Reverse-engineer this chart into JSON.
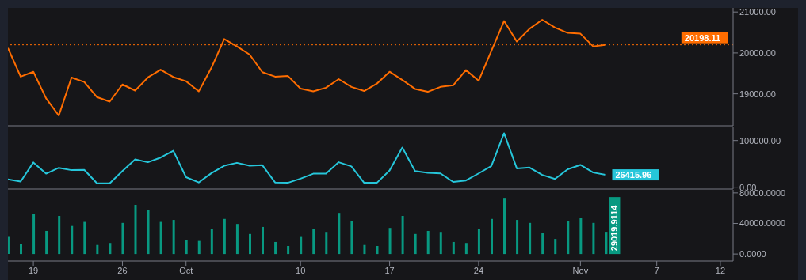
{
  "chart_data": [
    {
      "type": "line",
      "tick_labels": "y",
      "x": [
        "--09-17",
        "--09-18",
        "--09-19",
        "--09-20",
        "--09-21",
        "--09-22",
        "--09-23",
        "--09-24",
        "--09-25",
        "--09-26",
        "--09-27",
        "--09-28",
        "--09-29",
        "--09-30",
        "--10-01",
        "--10-02",
        "--10-03",
        "--10-04",
        "--10-05",
        "--10-06",
        "--10-07",
        "--10-08",
        "--10-09",
        "--10-10",
        "--10-11",
        "--10-12",
        "--10-13",
        "--10-14",
        "--10-15",
        "--10-16",
        "--10-17",
        "--10-18",
        "--10-19",
        "--10-20",
        "--10-21",
        "--10-22",
        "--10-23",
        "--10-24",
        "--10-25",
        "--10-26",
        "--10-27",
        "--10-28",
        "--10-29",
        "--10-30",
        "--10-31",
        "--11-01",
        "--11-02",
        "--11-03"
      ],
      "xlim": [
        "--09-17",
        "--11-13"
      ],
      "ylim": [
        18220,
        21100
      ],
      "yticks": [
        {
          "value": 19000,
          "label": "19000.00"
        },
        {
          "value": 20000,
          "label": "20000.00"
        },
        {
          "value": 21000,
          "label": "21000.00"
        }
      ],
      "series": [
        {
          "color": "#ff6d00",
          "values": [
            20120,
            19420,
            19540,
            18890,
            18470,
            19400,
            19290,
            18920,
            18810,
            19230,
            19080,
            19400,
            19590,
            19410,
            19310,
            19060,
            19640,
            20340,
            20160,
            19960,
            19530,
            19420,
            19440,
            19130,
            19060,
            19150,
            19360,
            19170,
            19070,
            19250,
            19540,
            19340,
            19120,
            19050,
            19170,
            19210,
            19580,
            19320,
            20050,
            20780,
            20280,
            20590,
            20810,
            20620,
            20490,
            20470,
            20160,
            20198.11
          ]
        }
      ],
      "ref_lines": [
        {
          "axis": "y",
          "value": 20198.11,
          "label": "20198.11",
          "color": "#ff6d00",
          "line_style": "dotted"
        }
      ]
    },
    {
      "type": "line",
      "tick_labels": "y",
      "x": [
        "--09-17",
        "--09-18",
        "--09-19",
        "--09-20",
        "--09-21",
        "--09-22",
        "--09-23",
        "--09-24",
        "--09-25",
        "--09-26",
        "--09-27",
        "--09-28",
        "--09-29",
        "--09-30",
        "--10-01",
        "--10-02",
        "--10-03",
        "--10-04",
        "--10-05",
        "--10-06",
        "--10-07",
        "--10-08",
        "--10-09",
        "--10-10",
        "--10-11",
        "--10-12",
        "--10-13",
        "--10-14",
        "--10-15",
        "--10-16",
        "--10-17",
        "--10-18",
        "--10-19",
        "--10-20",
        "--10-21",
        "--10-22",
        "--10-23",
        "--10-24",
        "--10-25",
        "--10-26",
        "--10-27",
        "--10-28",
        "--10-29",
        "--10-30",
        "--10-31",
        "--11-01",
        "--11-02",
        "--11-03"
      ],
      "xlim": [
        "--09-17",
        "--11-13"
      ],
      "ylim": [
        -4000,
        130000
      ],
      "yticks": [
        {
          "value": 0,
          "label": "0.00"
        },
        {
          "value": 100000,
          "label": "100000.00"
        }
      ],
      "series": [
        {
          "color": "#26c6da",
          "values": [
            17000,
            12000,
            53000,
            28900,
            41500,
            36500,
            37100,
            8200,
            8200,
            34600,
            59700,
            53500,
            63500,
            78000,
            21400,
            10100,
            30200,
            45900,
            52200,
            45900,
            47200,
            10100,
            9400,
            18200,
            28900,
            28900,
            53500,
            44600,
            9400,
            9400,
            35800,
            84900,
            34600,
            30800,
            29500,
            11300,
            14400,
            29500,
            45300,
            115700,
            40300,
            42100,
            26400,
            17600,
            38400,
            47800,
            31400,
            26415.96
          ],
          "value_labels": [
            null,
            null,
            null,
            null,
            null,
            null,
            null,
            null,
            null,
            null,
            null,
            null,
            null,
            null,
            null,
            null,
            null,
            null,
            null,
            null,
            null,
            null,
            null,
            null,
            null,
            null,
            null,
            null,
            null,
            null,
            null,
            null,
            null,
            null,
            null,
            null,
            null,
            null,
            null,
            null,
            null,
            null,
            null,
            null,
            null,
            null,
            null,
            "26415.96"
          ]
        }
      ]
    },
    {
      "type": "bar",
      "x": [
        "--09-17",
        "--09-18",
        "--09-19",
        "--09-20",
        "--09-21",
        "--09-22",
        "--09-23",
        "--09-24",
        "--09-25",
        "--09-26",
        "--09-27",
        "--09-28",
        "--09-29",
        "--09-30",
        "--10-01",
        "--10-02",
        "--10-03",
        "--10-04",
        "--10-05",
        "--10-06",
        "--10-07",
        "--10-08",
        "--10-09",
        "--10-10",
        "--10-11",
        "--10-12",
        "--10-13",
        "--10-14",
        "--10-15",
        "--10-16",
        "--10-17",
        "--10-18",
        "--10-19",
        "--10-20",
        "--10-21",
        "--10-22",
        "--10-23",
        "--10-24",
        "--10-25",
        "--10-26",
        "--10-27",
        "--10-28",
        "--10-29",
        "--10-30",
        "--10-31",
        "--11-01",
        "--11-02",
        "--11-03"
      ],
      "xlim": [
        "--09-17",
        "--11-13"
      ],
      "xticks": [
        {
          "value": "--09-19",
          "label": "19"
        },
        {
          "value": "--09-26",
          "label": "26"
        },
        {
          "value": "--10-01",
          "label": "Oct"
        },
        {
          "value": "--10-10",
          "label": "10"
        },
        {
          "value": "--10-17",
          "label": "17"
        },
        {
          "value": "--10-24",
          "label": "24"
        },
        {
          "value": "--11-01",
          "label": "Nov"
        },
        {
          "value": "--11-07",
          "label": "7"
        },
        {
          "value": "--11-12",
          "label": "12"
        }
      ],
      "ylim": [
        -9200,
        84000
      ],
      "yticks": [
        {
          "value": 0,
          "label": "0.0000"
        },
        {
          "value": 40000,
          "label": "40000.0000"
        },
        {
          "value": 80000,
          "label": "80000.0000"
        }
      ],
      "series": [
        {
          "color": "#089981",
          "values": [
            22300,
            13100,
            52500,
            30200,
            49800,
            36700,
            42000,
            11800,
            14400,
            40700,
            64300,
            57700,
            42000,
            44600,
            18400,
            17100,
            32800,
            45900,
            39300,
            26200,
            35400,
            15700,
            10500,
            22300,
            32800,
            28900,
            53800,
            43300,
            11800,
            10500,
            34100,
            49800,
            26200,
            30200,
            28900,
            15700,
            14400,
            32800,
            45900,
            73500,
            44600,
            40700,
            27500,
            19700,
            43300,
            47200,
            40700,
            29019.9114
          ],
          "value_labels": [
            null,
            null,
            null,
            null,
            null,
            null,
            null,
            null,
            null,
            null,
            null,
            null,
            null,
            null,
            null,
            null,
            null,
            null,
            null,
            null,
            null,
            null,
            null,
            null,
            null,
            null,
            null,
            null,
            null,
            null,
            null,
            null,
            null,
            null,
            null,
            null,
            null,
            null,
            null,
            null,
            null,
            null,
            null,
            null,
            null,
            null,
            null,
            "29019.9114"
          ]
        }
      ]
    }
  ]
}
